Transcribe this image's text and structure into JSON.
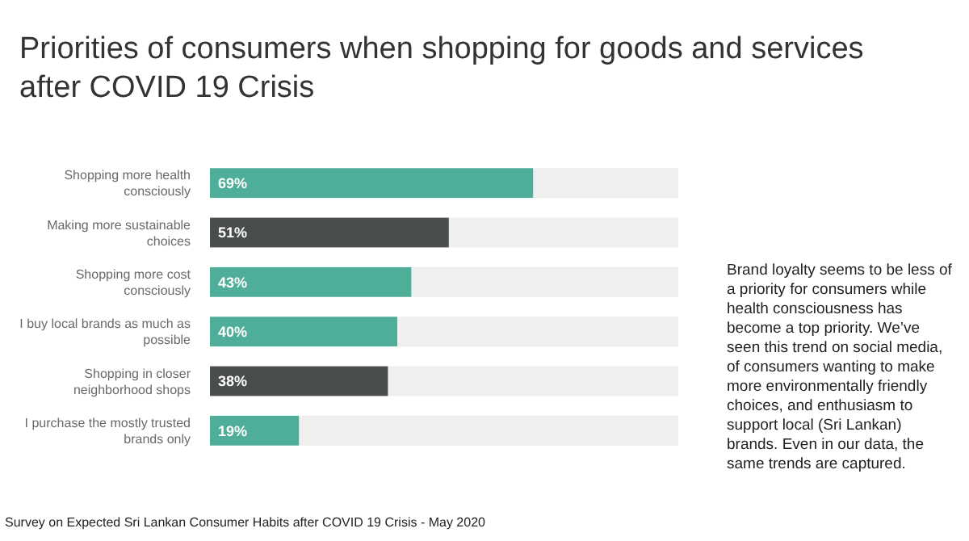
{
  "chart_data": {
    "type": "bar",
    "orientation": "horizontal",
    "title": "Priorities of consumers when shopping for goods and services after COVID 19 Crisis",
    "categories": [
      "Shopping more health consciously",
      "Making more sustainable choices",
      "Shopping more cost consciously",
      "I buy local brands as much as possible",
      "Shopping in closer neighborhood shops",
      "I purchase the mostly trusted brands only"
    ],
    "values": [
      69,
      51,
      43,
      40,
      38,
      19
    ],
    "colors": [
      "#4fae99",
      "#4a4d4d",
      "#4fae99",
      "#4fae99",
      "#4a4d4d",
      "#4fae99"
    ],
    "xlim": [
      0,
      100
    ],
    "value_labels": [
      "69%",
      "51%",
      "43%",
      "40%",
      "38%",
      "19%"
    ],
    "tick_labels": "y",
    "annotations": [
      "Brand loyalty seems to be less of a priority for consumers while health consciousness has become a top priority. We’ve seen this trend on social media, of consumers wanting to make more environmentally friendly choices, and enthusiasm to support local (Sri Lankan) brands. Even in our data, the same trends are captured.",
      "Survey on Expected Sri Lankan Consumer Habits after COVID 19 Crisis - May 2020"
    ]
  }
}
